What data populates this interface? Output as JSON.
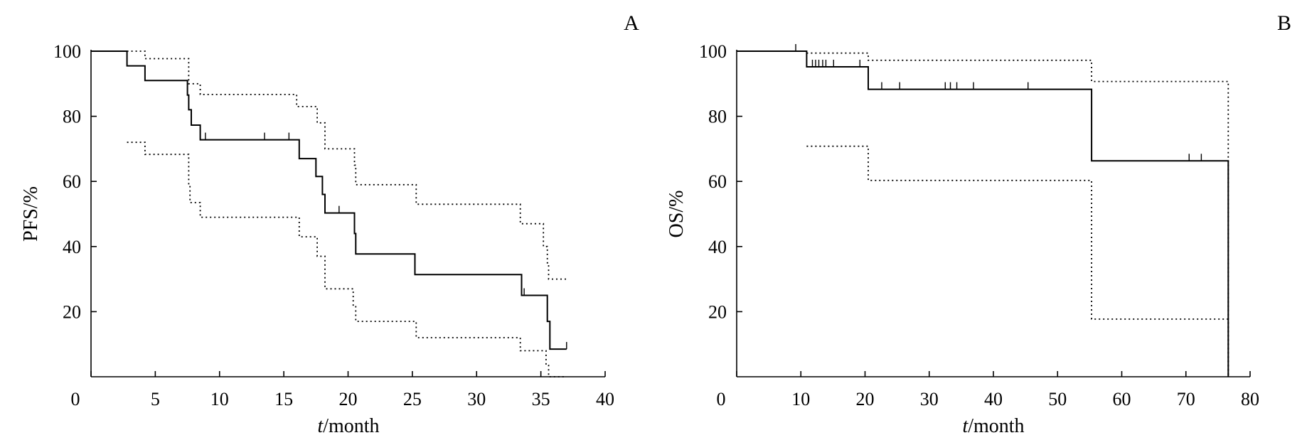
{
  "chart_data": [
    {
      "type": "line",
      "panel_label": "A",
      "ylabel": "PFS/%",
      "xlabel_italic": "t",
      "xlabel_rest": "/month",
      "xlim": [
        0,
        40
      ],
      "ylim": [
        0,
        100
      ],
      "xticks": [
        0,
        5,
        10,
        15,
        20,
        25,
        30,
        35,
        40
      ],
      "yticks": [
        20,
        40,
        60,
        80,
        100
      ],
      "grid": false,
      "series": [
        {
          "role": "survival",
          "style": "solid",
          "steps": [
            [
              0,
              100
            ],
            [
              2.8,
              95.5
            ],
            [
              4.2,
              91
            ],
            [
              7.5,
              86.5
            ],
            [
              7.6,
              82
            ],
            [
              7.8,
              77.3
            ],
            [
              8.5,
              72.8
            ],
            [
              16.2,
              67
            ],
            [
              17.5,
              61.5
            ],
            [
              18,
              56
            ],
            [
              18.2,
              50.3
            ],
            [
              20.5,
              44
            ],
            [
              20.6,
              37.7
            ],
            [
              25.2,
              31.4
            ],
            [
              33.5,
              25
            ],
            [
              35.5,
              17
            ],
            [
              35.7,
              8.5
            ],
            [
              37,
              8.5
            ]
          ],
          "end_x": 37,
          "censored": [
            [
              8.9,
              72.8
            ],
            [
              13.5,
              72.8
            ],
            [
              15.4,
              72.8
            ],
            [
              19.3,
              50.3
            ],
            [
              33.7,
              25
            ],
            [
              37,
              8.5
            ]
          ]
        },
        {
          "role": "upper-ci",
          "style": "dotted",
          "steps": [
            [
              2.8,
              100
            ],
            [
              4.2,
              97.7
            ],
            [
              7.6,
              90
            ],
            [
              8.5,
              86.7
            ],
            [
              16,
              83
            ],
            [
              17.6,
              78
            ],
            [
              18.2,
              70
            ],
            [
              20.5,
              65
            ],
            [
              20.6,
              59
            ],
            [
              25.3,
              53
            ],
            [
              33.4,
              47
            ],
            [
              35.2,
              40
            ],
            [
              35.5,
              35
            ],
            [
              35.6,
              30
            ]
          ],
          "end_x": 37
        },
        {
          "role": "lower-ci",
          "style": "dotted",
          "steps": [
            [
              2.8,
              72
            ],
            [
              4.2,
              68.3
            ],
            [
              7.6,
              59
            ],
            [
              7.7,
              53.5
            ],
            [
              8.5,
              49
            ],
            [
              16.2,
              43
            ],
            [
              17.6,
              37
            ],
            [
              18.2,
              27
            ],
            [
              20.4,
              22
            ],
            [
              20.6,
              17
            ],
            [
              25.3,
              12
            ],
            [
              33.4,
              8
            ],
            [
              35.4,
              3.5
            ],
            [
              35.6,
              0
            ]
          ],
          "end_x": 37
        }
      ]
    },
    {
      "type": "line",
      "panel_label": "B",
      "ylabel": "OS/%",
      "xlabel_italic": "t",
      "xlabel_rest": "/month",
      "xlim": [
        0,
        80
      ],
      "ylim": [
        0,
        100
      ],
      "xticks": [
        0,
        10,
        20,
        30,
        40,
        50,
        60,
        70,
        80
      ],
      "yticks": [
        20,
        40,
        60,
        80,
        100
      ],
      "grid": false,
      "series": [
        {
          "role": "survival",
          "style": "solid",
          "steps": [
            [
              0,
              100
            ],
            [
              10.9,
              95.2
            ],
            [
              20.5,
              88.3
            ],
            [
              55.3,
              66.3
            ],
            [
              76.6,
              0
            ]
          ],
          "end_x": 76.6,
          "censored": [
            [
              9.2,
              100
            ],
            [
              11.8,
              95.2
            ],
            [
              12.3,
              95.2
            ],
            [
              12.8,
              95.2
            ],
            [
              13.4,
              95.2
            ],
            [
              13.9,
              95.2
            ],
            [
              15.1,
              95.2
            ],
            [
              19.2,
              95.2
            ],
            [
              22.6,
              88.3
            ],
            [
              25.4,
              88.3
            ],
            [
              32.5,
              88.3
            ],
            [
              33.3,
              88.3
            ],
            [
              34.3,
              88.3
            ],
            [
              36.9,
              88.3
            ],
            [
              45.4,
              88.3
            ],
            [
              70.5,
              66.3
            ],
            [
              72.4,
              66.3
            ]
          ]
        },
        {
          "role": "upper-ci",
          "style": "dotted",
          "steps": [
            [
              10.9,
              99.4
            ],
            [
              20.5,
              97.2
            ],
            [
              55.3,
              90.7
            ],
            [
              76.6,
              90.7
            ]
          ],
          "end_x": 76.6,
          "drop_to_zero_at_end": true
        },
        {
          "role": "lower-ci",
          "style": "dotted",
          "steps": [
            [
              10.9,
              70.8
            ],
            [
              20.5,
              60.3
            ],
            [
              55.3,
              17.7
            ],
            [
              76.6,
              17.7
            ]
          ],
          "end_x": 76.6,
          "drop_to_zero_at_end": true
        }
      ]
    }
  ]
}
